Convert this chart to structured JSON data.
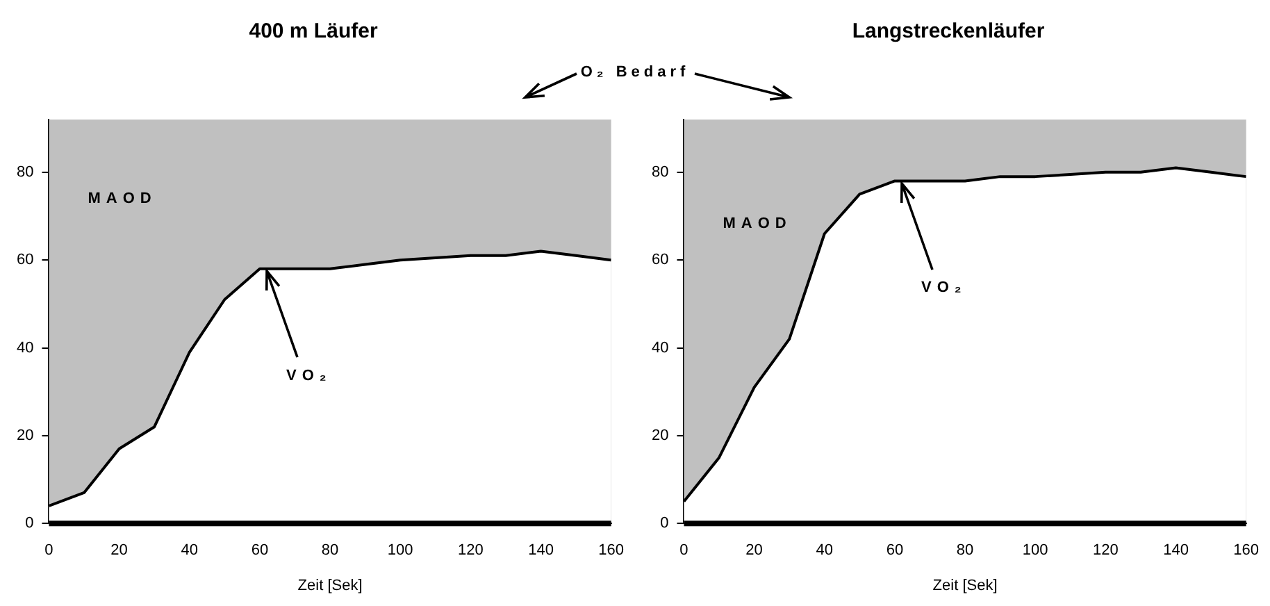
{
  "chart_data": [
    {
      "type": "area",
      "title": "400 m Läufer",
      "xlabel": "Zeit [Sek]",
      "x": [
        0,
        10,
        20,
        30,
        40,
        50,
        60,
        70,
        80,
        90,
        100,
        110,
        120,
        130,
        140,
        150,
        160
      ],
      "series": [
        {
          "color": "#ffffff",
          "values": [
            4,
            7,
            17,
            22,
            39,
            51,
            58,
            58,
            58,
            59,
            60,
            60.5,
            61,
            61,
            62,
            61,
            60
          ]
        }
      ],
      "bands": [
        {
          "axis": "y",
          "from": 0,
          "to": 92,
          "color": "#c0c0c0"
        }
      ],
      "ref_lines": [
        {
          "axis": "y",
          "value": 0,
          "color": "#000000"
        }
      ],
      "xlim": [
        0,
        160
      ],
      "xticks": [
        0,
        20,
        40,
        60,
        80,
        100,
        120,
        140,
        160
      ],
      "ylim": [
        0,
        92
      ],
      "yticks": [
        0,
        20,
        40,
        60,
        80
      ],
      "grid": false,
      "legend": false,
      "annotations": [
        "O₂ Bedarf",
        "MAOD",
        {
          "text": "VO₂",
          "x": 62,
          "y": 58
        }
      ]
    },
    {
      "type": "area",
      "title": "Langstreckenläufer",
      "xlabel": "Zeit [Sek]",
      "x": [
        0,
        10,
        20,
        30,
        40,
        50,
        60,
        70,
        80,
        90,
        100,
        110,
        120,
        130,
        140,
        150,
        160
      ],
      "series": [
        {
          "color": "#ffffff",
          "values": [
            5,
            15,
            31,
            42,
            66,
            75,
            78,
            78,
            78,
            79,
            79,
            79.5,
            80,
            80,
            81,
            80,
            79
          ]
        }
      ],
      "bands": [
        {
          "axis": "y",
          "from": 0,
          "to": 92,
          "color": "#c0c0c0"
        }
      ],
      "ref_lines": [
        {
          "axis": "y",
          "value": 0,
          "color": "#000000"
        }
      ],
      "xlim": [
        0,
        160
      ],
      "xticks": [
        0,
        20,
        40,
        60,
        80,
        100,
        120,
        140,
        160
      ],
      "ylim": [
        0,
        92
      ],
      "yticks": [
        0,
        20,
        40,
        60,
        80
      ],
      "grid": false,
      "legend": false,
      "annotations": [
        "MAOD",
        {
          "text": "VO₂",
          "x": 62,
          "y": 78
        }
      ]
    }
  ]
}
